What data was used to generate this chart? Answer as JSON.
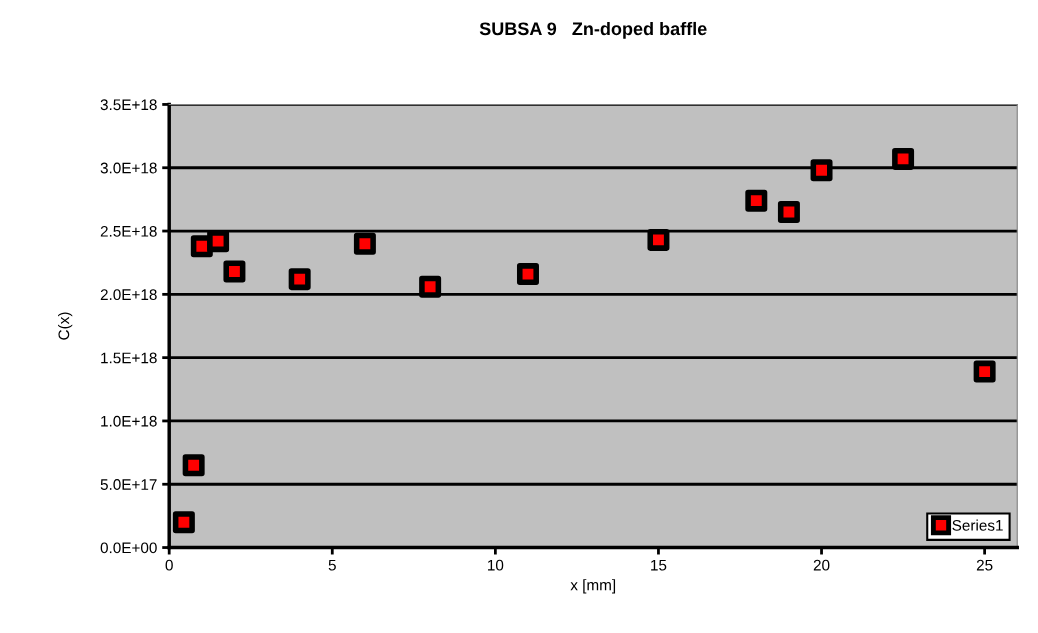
{
  "chart_data": {
    "type": "scatter",
    "title": "SUBSA 9   Zn-doped baffle",
    "xlabel": "x [mm]",
    "ylabel": "C(x)",
    "x": [
      0.45,
      0.75,
      1.0,
      1.5,
      2.0,
      4.0,
      6.0,
      8.0,
      11.0,
      15.0,
      18.0,
      19.0,
      20.0,
      22.5,
      25.0
    ],
    "series": [
      {
        "name": "Series1",
        "color": "#ff0000",
        "values": [
          2e+17,
          6.5e+17,
          2.38e+18,
          2.42e+18,
          2.18e+18,
          2.12e+18,
          2.4e+18,
          2.06e+18,
          2.16e+18,
          2.43e+18,
          2.74e+18,
          2.65e+18,
          2.98e+18,
          3.07e+18,
          1.39e+18
        ]
      }
    ],
    "xlim": [
      0,
      26
    ],
    "xticks": [
      0,
      5,
      10,
      15,
      20,
      25
    ],
    "ylim": [
      0,
      3.5e+18
    ],
    "yticks": [
      {
        "value": 0,
        "label": "0.0E+00"
      },
      {
        "value": 5e+17,
        "label": "5.0E+17"
      },
      {
        "value": 1e+18,
        "label": "1.0E+18"
      },
      {
        "value": 1.5e+18,
        "label": "1.5E+18"
      },
      {
        "value": 2e+18,
        "label": "2.0E+18"
      },
      {
        "value": 2.5e+18,
        "label": "2.5E+18"
      },
      {
        "value": 3e+18,
        "label": "3.0E+18"
      },
      {
        "value": 3.5e+18,
        "label": "3.5E+18"
      }
    ],
    "grid": "y",
    "legend": "bottom right",
    "marker": "square"
  }
}
